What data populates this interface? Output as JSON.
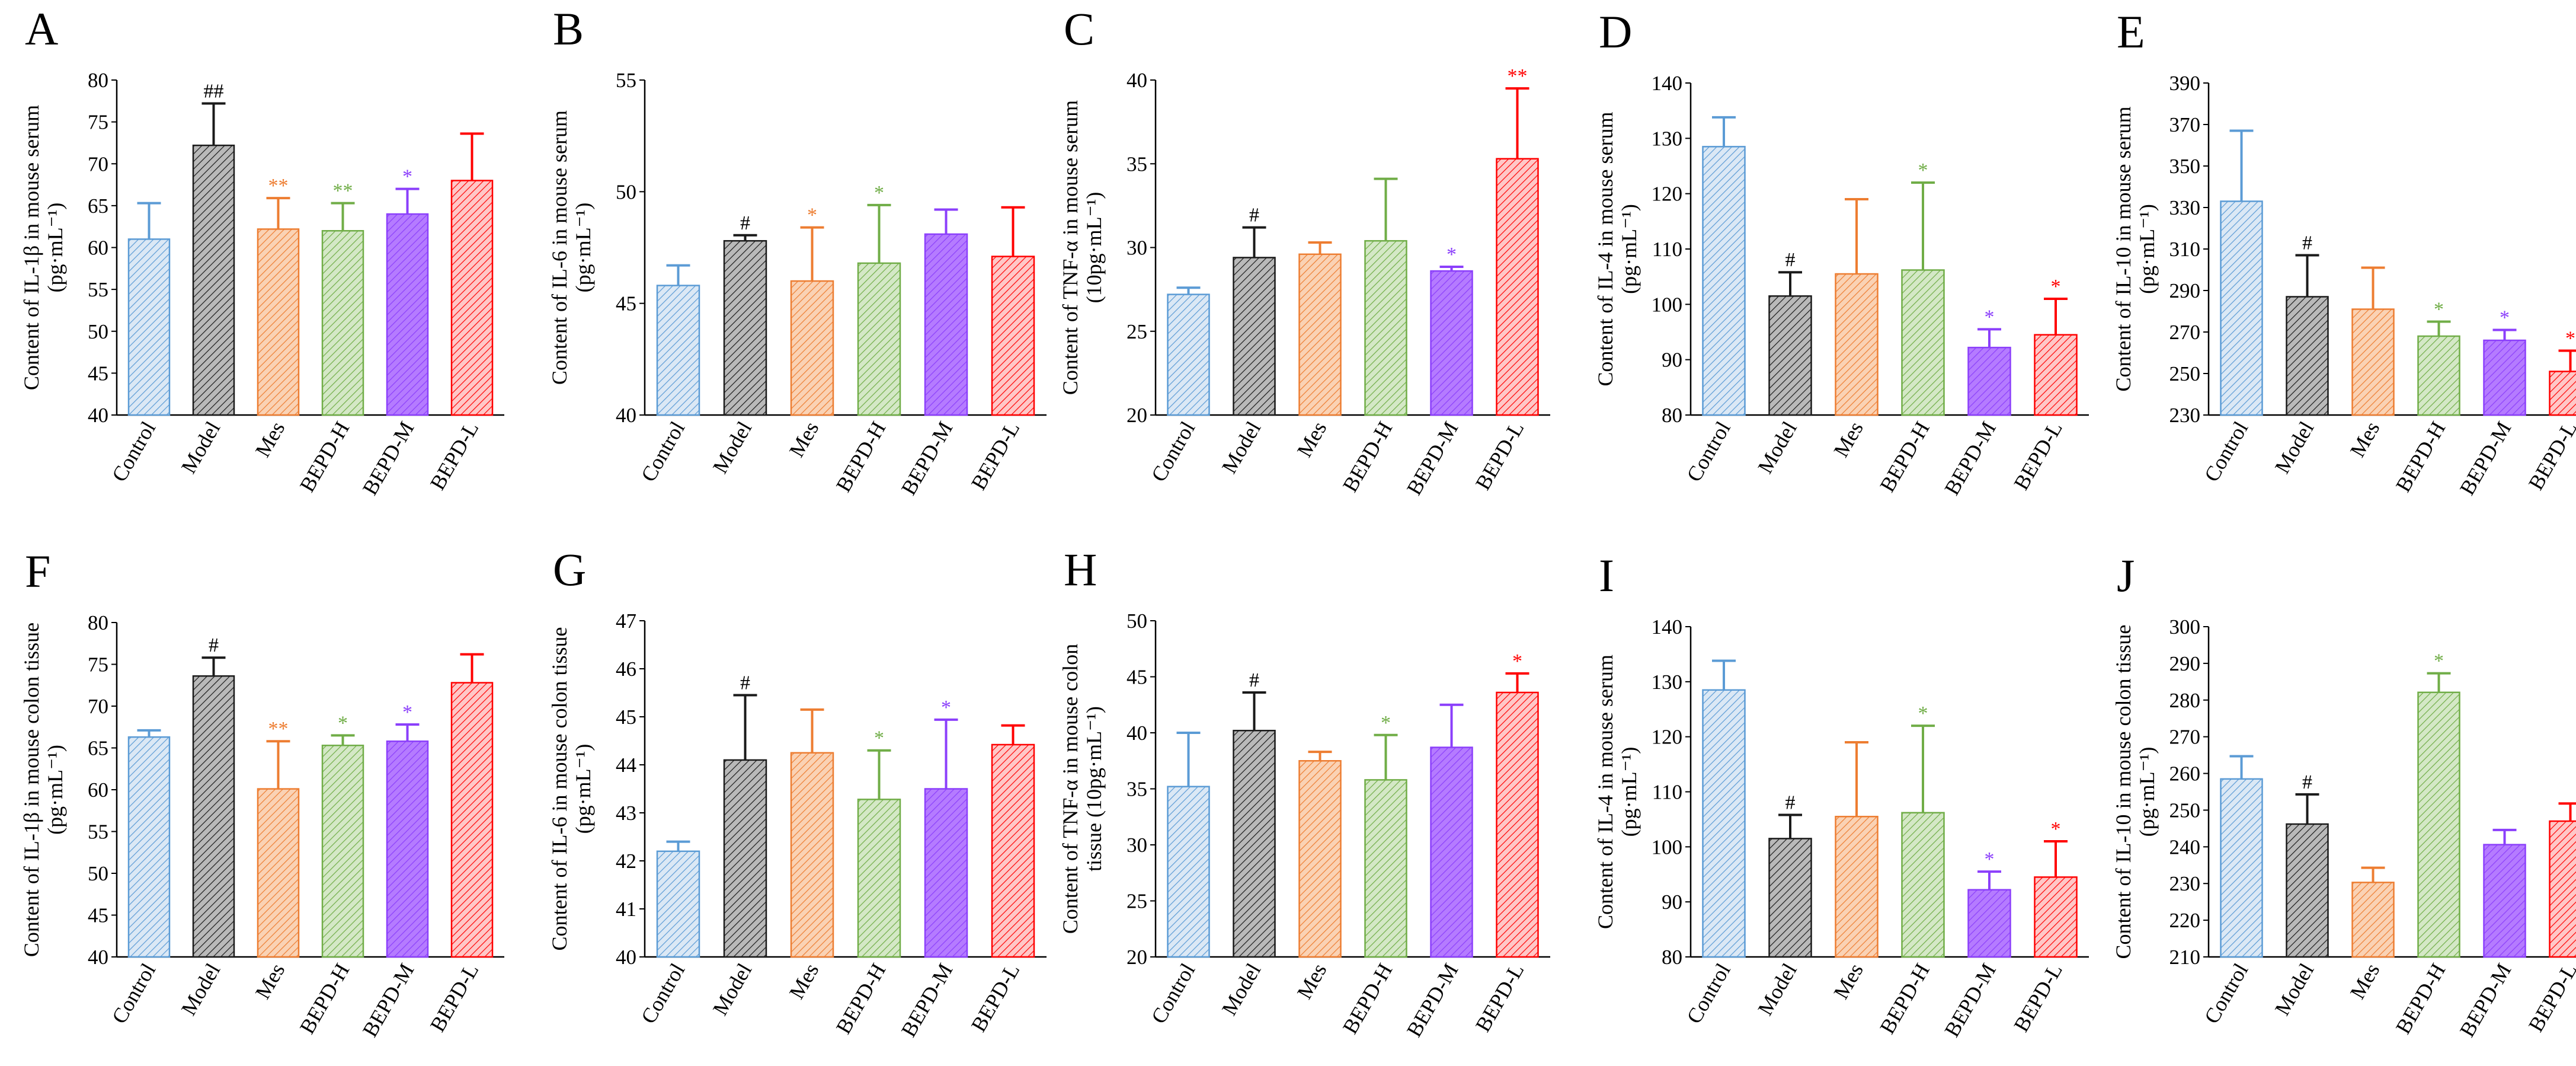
{
  "categories": [
    "Control",
    "Model",
    "Mes",
    "BEPD-H",
    "BEPD-M",
    "BEPD-L"
  ],
  "colors": [
    "#5b9bd5",
    "#1a1a1a",
    "#ed7d31",
    "#70ad47",
    "#8b3ffb",
    "#ff0000"
  ],
  "fills": [
    "#dbe8f5",
    "#b9b9b9",
    "#fad2b4",
    "#d4e8c6",
    "#b57bff",
    "#ffc7c7"
  ],
  "panels": [
    {
      "letter": "A",
      "ylabel": [
        "Content of IL-1β in mouse serum",
        "(pg·mL⁻¹)"
      ],
      "ylim": [
        40,
        80
      ],
      "ticks": [
        40,
        45,
        50,
        55,
        60,
        65,
        70,
        75,
        80
      ],
      "values": [
        61,
        72.2,
        62.2,
        62,
        64,
        68
      ],
      "errors": [
        4.3,
        5,
        3.7,
        3.3,
        3,
        5.6
      ],
      "sig": [
        "",
        "##",
        "**",
        "**",
        "*",
        ""
      ]
    },
    {
      "letter": "B",
      "ylabel": [
        "Content of IL-6 in mouse serum",
        "(pg·mL⁻¹)"
      ],
      "ylim": [
        40,
        55
      ],
      "ticks": [
        40,
        45,
        50,
        55
      ],
      "values": [
        45.8,
        47.8,
        46,
        46.8,
        48.1,
        47.1
      ],
      "errors": [
        0.9,
        0.25,
        2.4,
        2.6,
        1.1,
        2.2
      ],
      "sig": [
        "",
        "#",
        "*",
        "*",
        "",
        ""
      ]
    },
    {
      "letter": "C",
      "ylabel": [
        "Content of TNF-α in mouse serum",
        "(10pg·mL⁻¹)"
      ],
      "ylim": [
        20,
        40
      ],
      "ticks": [
        20,
        25,
        30,
        35,
        40
      ],
      "values": [
        27.2,
        29.4,
        29.6,
        30.4,
        28.6,
        35.3
      ],
      "errors": [
        0.4,
        1.8,
        0.7,
        3.7,
        0.25,
        4.2
      ],
      "sig": [
        "",
        "#",
        "",
        "",
        "*",
        "**"
      ]
    },
    {
      "letter": "D",
      "ylabel": [
        "Content of IL-4 in mouse serum",
        "(pg·mL⁻¹)"
      ],
      "ylim": [
        80,
        140
      ],
      "ticks": [
        80,
        90,
        100,
        110,
        120,
        130,
        140
      ],
      "values": [
        128.5,
        101.5,
        105.5,
        106.2,
        92.2,
        94.5
      ],
      "errors": [
        5.3,
        4.3,
        13.5,
        15.8,
        3.3,
        6.5
      ],
      "sig": [
        "",
        "#",
        "",
        "*",
        "*",
        "*"
      ]
    },
    {
      "letter": "E",
      "ylabel": [
        "Content of IL-10 in mouse serum",
        "(pg·mL⁻¹)"
      ],
      "ylim": [
        230,
        390
      ],
      "ticks": [
        230,
        250,
        270,
        290,
        310,
        330,
        350,
        370,
        390
      ],
      "values": [
        333,
        287,
        281,
        268,
        266,
        251
      ],
      "errors": [
        34,
        20,
        20,
        7,
        5,
        10
      ],
      "sig": [
        "",
        "#",
        "",
        "*",
        "*",
        "*"
      ]
    },
    {
      "letter": "F",
      "ylabel": [
        "Content of IL-1β in mouse colon tissue",
        "(pg·mL⁻¹)"
      ],
      "ylim": [
        40,
        80
      ],
      "ticks": [
        40,
        45,
        50,
        55,
        60,
        65,
        70,
        75,
        80
      ],
      "values": [
        66.3,
        73.6,
        60.1,
        65.3,
        65.8,
        72.8
      ],
      "errors": [
        0.8,
        2.2,
        5.7,
        1.2,
        2,
        3.4
      ],
      "sig": [
        "",
        "#",
        "**",
        "*",
        "*",
        ""
      ]
    },
    {
      "letter": "G",
      "ylabel": [
        "Content of IL-6 in mouse colon tissue",
        "(pg·mL⁻¹)"
      ],
      "ylim": [
        40,
        47
      ],
      "ticks": [
        40,
        41,
        42,
        43,
        44,
        45,
        46,
        47
      ],
      "values": [
        42.2,
        44.1,
        44.25,
        43.28,
        43.5,
        44.42
      ],
      "errors": [
        0.2,
        1.35,
        0.9,
        1.02,
        1.44,
        0.4
      ],
      "sig": [
        "",
        "#",
        "",
        "*",
        "*",
        ""
      ]
    },
    {
      "letter": "H",
      "ylabel": [
        "Content of TNF-α in mouse colon",
        "tissue (10pg·mL⁻¹)"
      ],
      "ylim": [
        20,
        50
      ],
      "ticks": [
        20,
        25,
        30,
        35,
        40,
        45,
        50
      ],
      "values": [
        35.2,
        40.2,
        37.5,
        35.8,
        38.7,
        43.6
      ],
      "errors": [
        4.8,
        3.4,
        0.8,
        4,
        3.8,
        1.7
      ],
      "sig": [
        "",
        "#",
        "",
        "*",
        "",
        "*"
      ]
    },
    {
      "letter": "I",
      "ylabel": [
        "Content of IL-4 in mouse serum",
        "(pg·mL⁻¹)"
      ],
      "ylim": [
        80,
        140
      ],
      "ticks": [
        80,
        90,
        100,
        110,
        120,
        130,
        140
      ],
      "values": [
        128.5,
        101.5,
        105.5,
        106.2,
        92.2,
        94.5
      ],
      "errors": [
        5.3,
        4.3,
        13.5,
        15.8,
        3.3,
        6.5
      ],
      "sig": [
        "",
        "#",
        "",
        "*",
        "*",
        "*"
      ]
    },
    {
      "letter": "J",
      "ylabel": [
        "Content of IL-10 in mouse colon tissue",
        "(pg·mL⁻¹)"
      ],
      "ylim": [
        210,
        300
      ],
      "ticks": [
        210,
        220,
        230,
        240,
        250,
        260,
        270,
        280,
        290,
        300
      ],
      "values": [
        258.5,
        246.2,
        230.3,
        282.1,
        240.6,
        247
      ],
      "errors": [
        6.2,
        8.1,
        4,
        5.2,
        4,
        4.8
      ],
      "sig": [
        "",
        "#",
        "",
        "*",
        "",
        ""
      ]
    }
  ]
}
